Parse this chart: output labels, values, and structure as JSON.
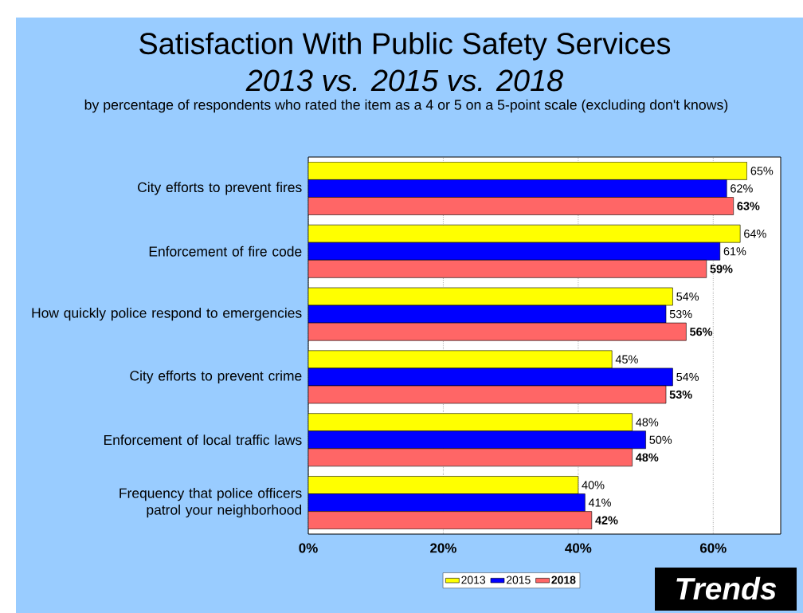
{
  "chart_data": {
    "type": "bar",
    "orientation": "horizontal",
    "title": "Satisfaction With Public Safety Services",
    "subtitle": "2013 vs. 2015 vs. 2018",
    "annotations": [
      "by percentage of respondents who rated the item as a 4 or 5 on a 5-point scale (excluding don't knows)",
      "Trends"
    ],
    "categories": [
      "City efforts to prevent fires",
      "Enforcement of fire code",
      "How quickly police respond to emergencies",
      "City efforts to prevent crime",
      "Enforcement of local traffic laws",
      "Frequency that police officers patrol your neighborhood"
    ],
    "series": [
      {
        "name": "2013",
        "color": "#ffff00",
        "values": [
          65,
          64,
          54,
          45,
          48,
          40
        ],
        "value_labels": [
          "65%",
          "64%",
          "54%",
          "45%",
          "48%",
          "40%"
        ]
      },
      {
        "name": "2015",
        "color": "#0000ff",
        "values": [
          62,
          61,
          53,
          54,
          50,
          41
        ],
        "value_labels": [
          "62%",
          "61%",
          "53%",
          "54%",
          "50%",
          "41%"
        ]
      },
      {
        "name": "2018",
        "color": "#ff6666",
        "values": [
          63,
          59,
          56,
          53,
          48,
          42
        ],
        "value_labels": [
          "63%",
          "59%",
          "56%",
          "53%",
          "48%",
          "42%"
        ]
      }
    ],
    "xlim": [
      0,
      70
    ],
    "xticks": [
      {
        "value": 0,
        "label": "0%"
      },
      {
        "value": 20,
        "label": "20%"
      },
      {
        "value": 40,
        "label": "40%"
      },
      {
        "value": 60,
        "label": "60%"
      }
    ],
    "grid": "x",
    "legend": "bottom"
  }
}
